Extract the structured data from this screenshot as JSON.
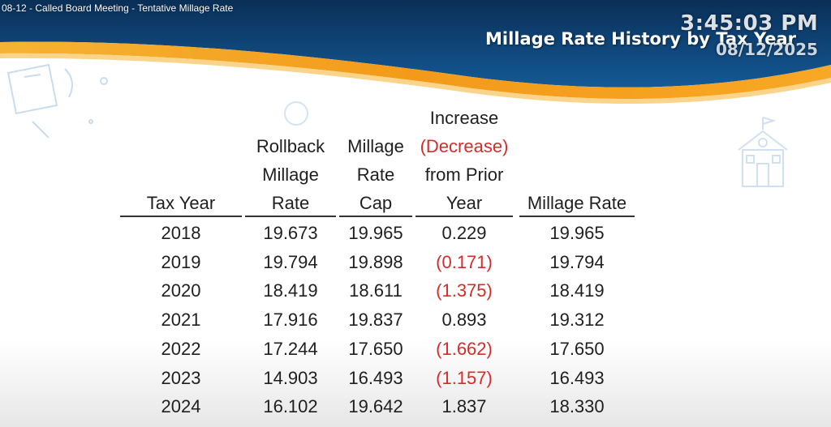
{
  "video": {
    "title": "08-12 - Called Board Meeting - Tentative Millage Rate",
    "clock_time": "3:45:03 PM",
    "clock_date": "08/12/2025"
  },
  "slide": {
    "title": "Millage Rate History by Tax Year"
  },
  "colors": {
    "header_blue": "#0d3d6e",
    "accent_orange": "#f4a21d",
    "negative_red": "#d42b2b"
  },
  "table": {
    "headers": {
      "tax_year": [
        "Tax Year"
      ],
      "rollback": [
        "Rollback",
        "Millage",
        "Rate"
      ],
      "cap": [
        "Millage",
        "Rate",
        "Cap"
      ],
      "change": [
        "Increase",
        "(Decrease)",
        "from Prior",
        "Year"
      ],
      "millage": [
        "Millage Rate"
      ]
    },
    "rows": [
      {
        "year": "2018",
        "rollback": "19.673",
        "cap": "19.965",
        "change": "0.229",
        "change_negative": false,
        "millage": "19.965"
      },
      {
        "year": "2019",
        "rollback": "19.794",
        "cap": "19.898",
        "change": "(0.171)",
        "change_negative": true,
        "millage": "19.794"
      },
      {
        "year": "2020",
        "rollback": "18.419",
        "cap": "18.611",
        "change": "(1.375)",
        "change_negative": true,
        "millage": "18.419"
      },
      {
        "year": "2021",
        "rollback": "17.916",
        "cap": "19.837",
        "change": "0.893",
        "change_negative": false,
        "millage": "19.312"
      },
      {
        "year": "2022",
        "rollback": "17.244",
        "cap": "17.650",
        "change": "(1.662)",
        "change_negative": true,
        "millage": "17.650"
      },
      {
        "year": "2023",
        "rollback": "14.903",
        "cap": "16.493",
        "change": "(1.157)",
        "change_negative": true,
        "millage": "16.493"
      },
      {
        "year": "2024",
        "rollback": "16.102",
        "cap": "19.642",
        "change": "1.837",
        "change_negative": false,
        "millage": "18.330"
      }
    ]
  }
}
